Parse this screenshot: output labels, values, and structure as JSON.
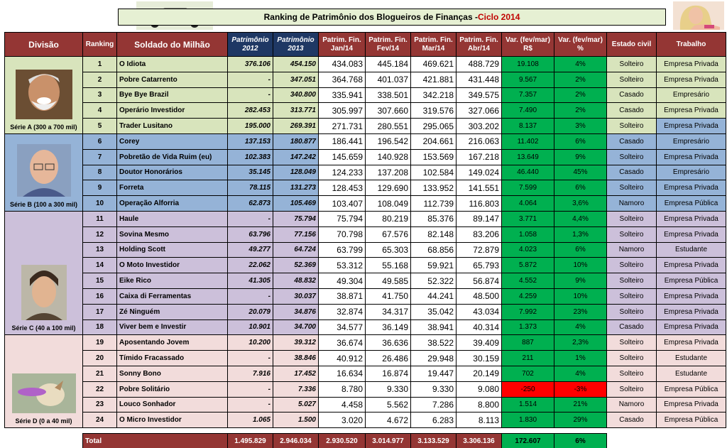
{
  "header": {
    "title_main": "Ranking de Patrimônio dos Blogueiros de Finanças - ",
    "title_cycle": "Ciclo 2014"
  },
  "columns": [
    "Divisão",
    "Ranking",
    "Soldado do Milhão",
    "Patrimônio 2012",
    "Patrimônio 2013",
    "Patrim. Fin. Jan/14",
    "Patrim. Fin. Fev/14",
    "Patrim. Fin. Mar/14",
    "Patrim. Fin. Abr/14",
    "Var. (fev/mar) R$",
    "Var. (fev/mar) %",
    "Estado civil",
    "Trabalho"
  ],
  "divisions": [
    {
      "label": "Série A (300 a 700 mil)",
      "avatar": "laughing-man-photo"
    },
    {
      "label": "Série B (100 a 300 mil)",
      "avatar": "bald-man-glasses-photo"
    },
    {
      "label": "Série C (40 a 100 mil)",
      "avatar": "young-man-photo"
    },
    {
      "label": "Série D (0 a 40 mil)",
      "avatar": "dog-frisbee-photo"
    }
  ],
  "rows": [
    {
      "rank": "1",
      "name": "O Idiota",
      "p2012": "376.106",
      "p2013": "454.150",
      "jan": "434.083",
      "fev": "445.184",
      "mar": "469.621",
      "abr": "488.729",
      "var_rs": "19.108",
      "var_pct": "4%",
      "civil": "Solteiro",
      "work": "Empresa Privada"
    },
    {
      "rank": "2",
      "name": "Pobre Catarrento",
      "p2012": "-",
      "p2013": "347.051",
      "jan": "364.768",
      "fev": "401.037",
      "mar": "421.881",
      "abr": "431.448",
      "var_rs": "9.567",
      "var_pct": "2%",
      "civil": "Solteiro",
      "work": "Empresa Privada"
    },
    {
      "rank": "3",
      "name": "Bye Bye Brazil",
      "p2012": "-",
      "p2013": "340.800",
      "jan": "335.941",
      "fev": "338.501",
      "mar": "342.218",
      "abr": "349.575",
      "var_rs": "7.357",
      "var_pct": "2%",
      "civil": "Casado",
      "work": "Empresário"
    },
    {
      "rank": "4",
      "name": "Operário Investidor",
      "p2012": "282.453",
      "p2013": "313.771",
      "jan": "305.997",
      "fev": "307.660",
      "mar": "319.576",
      "abr": "327.066",
      "var_rs": "7.490",
      "var_pct": "2%",
      "civil": "Casado",
      "work": "Empresa Privada"
    },
    {
      "rank": "5",
      "name": "Trader Lusitano",
      "p2012": "195.000",
      "p2013": "269.391",
      "jan": "271.731",
      "fev": "280.551",
      "mar": "295.065",
      "abr": "303.202",
      "var_rs": "8.137",
      "var_pct": "3%",
      "civil": "Solteiro",
      "work": "Empresa Privada"
    },
    {
      "rank": "6",
      "name": "Corey",
      "p2012": "137.153",
      "p2013": "180.877",
      "jan": "186.441",
      "fev": "196.542",
      "mar": "204.661",
      "abr": "216.063",
      "var_rs": "11.402",
      "var_pct": "6%",
      "civil": "Casado",
      "work": "Empresário"
    },
    {
      "rank": "7",
      "name": "Pobretão de Vida Ruim (eu)",
      "p2012": "102.383",
      "p2013": "147.242",
      "jan": "145.659",
      "fev": "140.928",
      "mar": "153.569",
      "abr": "167.218",
      "var_rs": "13.649",
      "var_pct": "9%",
      "civil": "Solteiro",
      "work": "Empresa Privada"
    },
    {
      "rank": "8",
      "name": "Doutor Honorários",
      "p2012": "35.145",
      "p2013": "128.049",
      "jan": "124.233",
      "fev": "137.208",
      "mar": "102.584",
      "abr": "149.024",
      "var_rs": "46.440",
      "var_pct": "45%",
      "civil": "Casado",
      "work": "Empresário"
    },
    {
      "rank": "9",
      "name": "Forreta",
      "p2012": "78.115",
      "p2013": "131.273",
      "jan": "128.453",
      "fev": "129.690",
      "mar": "133.952",
      "abr": "141.551",
      "var_rs": "7.599",
      "var_pct": "6%",
      "civil": "Solteiro",
      "work": "Empresa Privada"
    },
    {
      "rank": "10",
      "name": "Operação Alforria",
      "p2012": "62.873",
      "p2013": "105.469",
      "jan": "103.407",
      "fev": "108.049",
      "mar": "112.739",
      "abr": "116.803",
      "var_rs": "4.064",
      "var_pct": "3,6%",
      "civil": "Namoro",
      "work": "Empresa Pública"
    },
    {
      "rank": "11",
      "name": "Haule",
      "p2012": "-",
      "p2013": "75.794",
      "jan": "75.794",
      "fev": "80.219",
      "mar": "85.376",
      "abr": "89.147",
      "var_rs": "3.771",
      "var_pct": "4,4%",
      "civil": "Solteiro",
      "work": "Empresa Privada"
    },
    {
      "rank": "12",
      "name": "Sovina Mesmo",
      "p2012": "63.796",
      "p2013": "77.156",
      "jan": "70.798",
      "fev": "67.576",
      "mar": "82.148",
      "abr": "83.206",
      "var_rs": "1.058",
      "var_pct": "1,3%",
      "civil": "Solteiro",
      "work": "Empresa Privada"
    },
    {
      "rank": "13",
      "name": "Holding Scott",
      "p2012": "49.277",
      "p2013": "64.724",
      "jan": "63.799",
      "fev": "65.303",
      "mar": "68.856",
      "abr": "72.879",
      "var_rs": "4.023",
      "var_pct": "6%",
      "civil": "Namoro",
      "work": "Estudante"
    },
    {
      "rank": "14",
      "name": "O Moto Investidor",
      "p2012": "22.062",
      "p2013": "52.369",
      "jan": "53.312",
      "fev": "55.168",
      "mar": "59.921",
      "abr": "65.793",
      "var_rs": "5.872",
      "var_pct": "10%",
      "civil": "Solteiro",
      "work": "Empresa Privada"
    },
    {
      "rank": "15",
      "name": "Eike Rico",
      "p2012": "41.305",
      "p2013": "48.832",
      "jan": "49.304",
      "fev": "49.585",
      "mar": "52.322",
      "abr": "56.874",
      "var_rs": "4.552",
      "var_pct": "9%",
      "civil": "Solteiro",
      "work": "Empresa Pública"
    },
    {
      "rank": "16",
      "name": "Caixa di Ferramentas",
      "p2012": "-",
      "p2013": "30.037",
      "jan": "38.871",
      "fev": "41.750",
      "mar": "44.241",
      "abr": "48.500",
      "var_rs": "4.259",
      "var_pct": "10%",
      "civil": "Solteiro",
      "work": "Empresa Privada"
    },
    {
      "rank": "17",
      "name": "Zé Ninguém",
      "p2012": "20.079",
      "p2013": "34.876",
      "jan": "32.874",
      "fev": "34.317",
      "mar": "35.042",
      "abr": "43.034",
      "var_rs": "7.992",
      "var_pct": "23%",
      "civil": "Solteiro",
      "work": "Empresa Privada"
    },
    {
      "rank": "18",
      "name": "Viver bem e Investir",
      "p2012": "10.901",
      "p2013": "34.700",
      "jan": "34.577",
      "fev": "36.149",
      "mar": "38.941",
      "abr": "40.314",
      "var_rs": "1.373",
      "var_pct": "4%",
      "civil": "Casado",
      "work": "Empresa Privada"
    },
    {
      "rank": "19",
      "name": "Aposentando Jovem",
      "p2012": "10.200",
      "p2013": "39.312",
      "jan": "36.674",
      "fev": "36.636",
      "mar": "38.522",
      "abr": "39.409",
      "var_rs": "887",
      "var_pct": "2,3%",
      "civil": "Solteiro",
      "work": "Empresa Privada"
    },
    {
      "rank": "20",
      "name": "Tímido Fracassado",
      "p2012": "-",
      "p2013": "38.846",
      "jan": "40.912",
      "fev": "26.486",
      "mar": "29.948",
      "abr": "30.159",
      "var_rs": "211",
      "var_pct": "1%",
      "civil": "Solteiro",
      "work": "Estudante"
    },
    {
      "rank": "21",
      "name": "Sonny Bono",
      "p2012": "7.916",
      "p2013": "17.452",
      "jan": "16.634",
      "fev": "16.874",
      "mar": "19.447",
      "abr": "20.149",
      "var_rs": "702",
      "var_pct": "4%",
      "civil": "Solteiro",
      "work": "Estudante"
    },
    {
      "rank": "22",
      "name": "Pobre Solitário",
      "p2012": "-",
      "p2013": "7.336",
      "jan": "8.780",
      "fev": "9.330",
      "mar": "9.330",
      "abr": "9.080",
      "var_rs": "-250",
      "var_pct": "-3%",
      "civil": "Solteiro",
      "work": "Empresa Pública"
    },
    {
      "rank": "23",
      "name": "Louco Sonhador",
      "p2012": "-",
      "p2013": "5.027",
      "jan": "4.458",
      "fev": "5.562",
      "mar": "7.286",
      "abr": "8.800",
      "var_rs": "1.514",
      "var_pct": "21%",
      "civil": "Namoro",
      "work": "Empresa Privada"
    },
    {
      "rank": "24",
      "name": "O Micro Investidor",
      "p2012": "1.065",
      "p2013": "1.500",
      "jan": "3.020",
      "fev": "4.672",
      "mar": "6.283",
      "abr": "8.113",
      "var_rs": "1.830",
      "var_pct": "29%",
      "civil": "Casado",
      "work": "Empresa Pública"
    }
  ],
  "total": {
    "label": "Total",
    "p2012": "1.495.829",
    "p2013": "2.946.034",
    "jan": "2.930.520",
    "fev": "3.014.977",
    "mar": "3.133.529",
    "abr": "3.306.136",
    "var_rs": "172.607",
    "var_pct": "6%"
  },
  "colors": {
    "header_red": "#943634",
    "navy": "#1f3864",
    "serie_a": "#d8e4bc",
    "serie_b": "#95b3d7",
    "serie_c": "#ccc0da",
    "serie_d": "#f2dcdb",
    "positive_green": "#00b050",
    "negative_red": "#ff0000"
  }
}
